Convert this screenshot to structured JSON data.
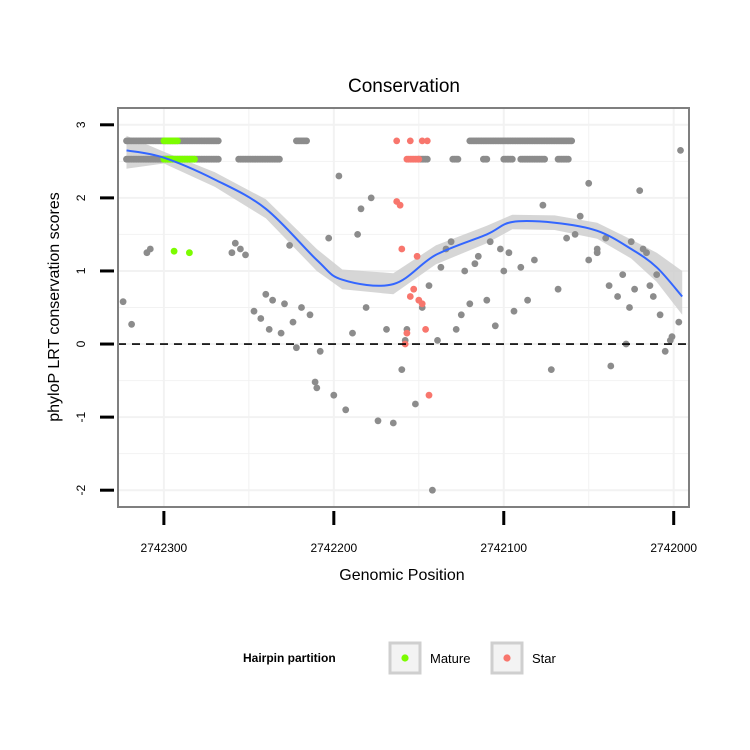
{
  "colors": {
    "other": "#8c8c8c",
    "mature": "#7cfc00",
    "star": "#f8766d",
    "smooth_line": "#3366ff",
    "ribbon": "#cfcfcf",
    "panel_border": "#7f7f7f",
    "grid": "#f2f2f2"
  },
  "chart_data": {
    "type": "scatter",
    "title": "Conservation",
    "xlabel": "Genomic Position",
    "ylabel": "phyloP LRT conservation scores",
    "x_reversed": true,
    "xlim": [
      2742327,
      2741991
    ],
    "ylim": [
      -2.23,
      3.23
    ],
    "x_ticks": [
      2742300,
      2742200,
      2742100,
      2742000
    ],
    "x_tick_labels": [
      "2742300",
      "2742200",
      "2742100",
      "2742000"
    ],
    "y_ticks": [
      -2,
      -1,
      0,
      1,
      2,
      3
    ],
    "y_tick_labels": [
      "-2",
      "-1",
      "0",
      "1",
      "2",
      "3"
    ],
    "reference_line": {
      "y": 0,
      "style": "dashed"
    },
    "legend": {
      "title": "Hairpin partition",
      "position": "bottom",
      "entries": [
        {
          "label": "Mature",
          "key": "mature"
        },
        {
          "label": "Star",
          "key": "star"
        }
      ]
    },
    "smooth": {
      "method": "loess",
      "x": [
        2742322,
        2742300,
        2742270,
        2742240,
        2742210,
        2742195,
        2742165,
        2742140,
        2742110,
        2742095,
        2742070,
        2742045,
        2742025,
        2742010,
        2741995
      ],
      "y": [
        2.65,
        2.55,
        2.25,
        1.85,
        1.15,
        0.88,
        0.82,
        1.22,
        1.5,
        1.67,
        1.66,
        1.55,
        1.3,
        1.05,
        0.65
      ],
      "se_upper": [
        2.85,
        2.63,
        2.35,
        1.98,
        1.3,
        1.02,
        0.97,
        1.35,
        1.62,
        1.77,
        1.76,
        1.66,
        1.43,
        1.25,
        1.0
      ],
      "se_lower": [
        2.4,
        2.47,
        2.15,
        1.72,
        1.0,
        0.75,
        0.68,
        1.09,
        1.38,
        1.57,
        1.56,
        1.44,
        1.17,
        0.85,
        0.4
      ]
    },
    "series": [
      {
        "name": "Other",
        "key": "other",
        "runs": [
          {
            "x_start": 2742322,
            "x_end": 2742268,
            "step": 1,
            "y": 2.78
          },
          {
            "x_start": 2742322,
            "x_end": 2742268,
            "step": 1,
            "y": 2.53
          },
          {
            "x_start": 2742256,
            "x_end": 2742232,
            "step": 1,
            "y": 2.53
          },
          {
            "x_start": 2742222,
            "x_end": 2742216,
            "step": 1,
            "y": 2.78
          },
          {
            "x_start": 2742150,
            "x_end": 2742145,
            "step": 1,
            "y": 2.53
          },
          {
            "x_start": 2742130,
            "x_end": 2742127,
            "step": 1,
            "y": 2.53
          },
          {
            "x_start": 2742120,
            "x_end": 2742060,
            "step": 1,
            "y": 2.78
          },
          {
            "x_start": 2742112,
            "x_end": 2742110,
            "step": 1,
            "y": 2.53
          },
          {
            "x_start": 2742100,
            "x_end": 2742095,
            "step": 1,
            "y": 2.53
          },
          {
            "x_start": 2742090,
            "x_end": 2742076,
            "step": 1,
            "y": 2.53
          },
          {
            "x_start": 2742068,
            "x_end": 2742062,
            "step": 1,
            "y": 2.53
          }
        ],
        "x": [
          2742324,
          2742319,
          2742310,
          2742308,
          2742260,
          2742258,
          2742255,
          2742252,
          2742247,
          2742243,
          2742240,
          2742238,
          2742236,
          2742231,
          2742229,
          2742226,
          2742224,
          2742222,
          2742219,
          2742214,
          2742211,
          2742210,
          2742208,
          2742203,
          2742200,
          2742197,
          2742193,
          2742189,
          2742186,
          2742184,
          2742181,
          2742178,
          2742174,
          2742169,
          2742165,
          2742160,
          2742158,
          2742157,
          2742152,
          2742148,
          2742144,
          2742142,
          2742139,
          2742137,
          2742134,
          2742131,
          2742128,
          2742125,
          2742123,
          2742120,
          2742117,
          2742115,
          2742110,
          2742108,
          2742105,
          2742102,
          2742100,
          2742097,
          2742094,
          2742090,
          2742086,
          2742082,
          2742077,
          2742072,
          2742068,
          2742063,
          2742058,
          2742055,
          2742050,
          2742045,
          2742040,
          2742038,
          2742037,
          2742033,
          2742030,
          2742028,
          2742026,
          2742023,
          2742020,
          2742018,
          2742016,
          2742014,
          2742012,
          2742010,
          2742008,
          2742005,
          2742002,
          2742001,
          2741997,
          2741996,
          2742050,
          2742045,
          2742025
        ],
        "y": [
          0.58,
          0.27,
          1.25,
          1.3,
          1.25,
          1.38,
          1.3,
          1.22,
          0.45,
          0.35,
          0.68,
          0.2,
          0.6,
          0.15,
          0.55,
          1.35,
          0.3,
          -0.05,
          0.5,
          0.4,
          -0.52,
          -0.6,
          -0.1,
          1.45,
          -0.7,
          2.3,
          -0.9,
          0.15,
          1.5,
          1.85,
          0.5,
          2.0,
          -1.05,
          0.2,
          -1.08,
          -0.35,
          0.05,
          0.2,
          -0.82,
          0.5,
          0.8,
          -2.0,
          0.05,
          1.05,
          1.3,
          1.4,
          0.2,
          0.4,
          1.0,
          0.55,
          1.1,
          1.2,
          0.6,
          1.4,
          0.25,
          1.3,
          1.0,
          1.25,
          0.45,
          1.05,
          0.6,
          1.15,
          1.9,
          -0.35,
          0.75,
          1.45,
          1.5,
          1.75,
          2.2,
          1.25,
          1.45,
          0.8,
          -0.3,
          0.65,
          0.95,
          0.0,
          0.5,
          0.75,
          2.1,
          1.3,
          1.25,
          0.8,
          0.65,
          0.95,
          0.4,
          -0.1,
          0.05,
          0.1,
          0.3,
          2.65,
          1.15,
          1.3,
          1.4
        ]
      },
      {
        "name": "Mature",
        "key": "mature",
        "runs": [
          {
            "x_start": 2742300,
            "x_end": 2742292,
            "step": 1,
            "y": 2.78
          },
          {
            "x_start": 2742300,
            "x_end": 2742282,
            "step": 1,
            "y": 2.53
          }
        ],
        "x": [
          2742294,
          2742285
        ],
        "y": [
          1.27,
          1.25
        ]
      },
      {
        "name": "Star",
        "key": "star",
        "runs": [
          {
            "x_start": 2742157,
            "x_end": 2742150,
            "step": 1,
            "y": 2.53
          }
        ],
        "x": [
          2742163,
          2742155,
          2742148,
          2742145,
          2742163,
          2742161,
          2742160,
          2742158,
          2742157,
          2742155,
          2742153,
          2742151,
          2742150,
          2742148,
          2742146,
          2742144
        ],
        "y": [
          2.78,
          2.78,
          2.78,
          2.78,
          1.95,
          1.9,
          1.3,
          0.0,
          0.15,
          0.65,
          0.75,
          1.2,
          0.6,
          0.55,
          0.2,
          -0.7
        ]
      }
    ]
  }
}
